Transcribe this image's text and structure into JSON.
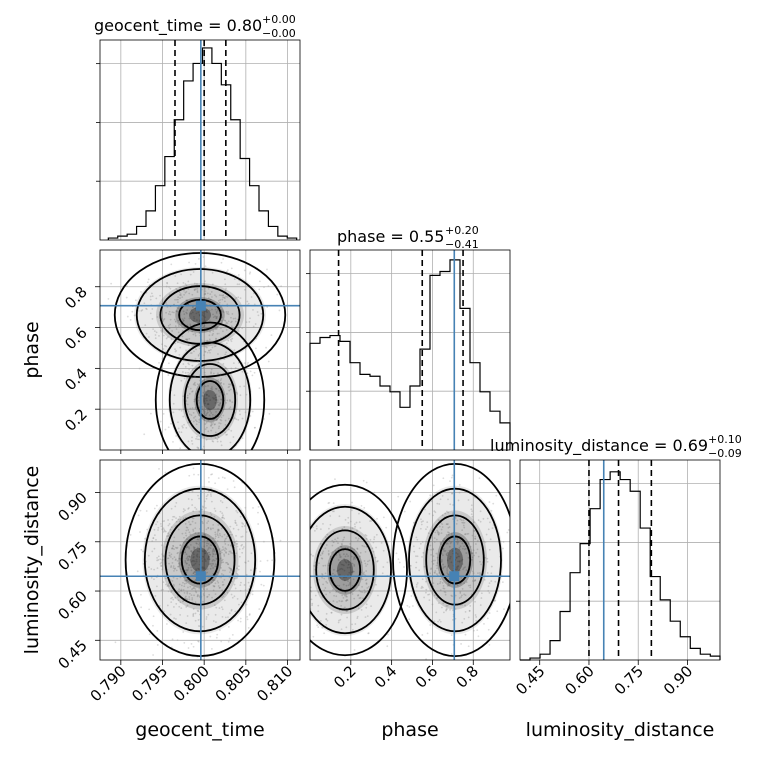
{
  "chart_data": {
    "type": "corner",
    "parameters": [
      "geocent_time",
      "phase",
      "luminosity_distance"
    ],
    "truth_color": "#4682b4",
    "truths": {
      "geocent_time": 0.7996,
      "phase": 0.707,
      "luminosity_distance": 0.645
    },
    "ranges": {
      "geocent_time": [
        0.7875,
        0.8115
      ],
      "phase": [
        0.0,
        0.98
      ],
      "luminosity_distance": [
        0.39,
        0.999
      ]
    },
    "titles": [
      {
        "param": "geocent_time",
        "text": "geocent_time = 0.80",
        "plus": "+0.00",
        "minus": "−0.00"
      },
      {
        "param": "phase",
        "text": "phase = 0.55",
        "plus": "+0.20",
        "minus": "−0.41"
      },
      {
        "param": "luminosity_distance",
        "text": "luminosity_distance = 0.69",
        "plus": "+0.10",
        "minus": "−0.09"
      }
    ],
    "axis_labels": {
      "x": [
        "geocent_time",
        "phase",
        "luminosity_distance"
      ],
      "y": [
        "phase",
        "luminosity_distance"
      ]
    },
    "ticks": {
      "geocent_time": [
        "0.790",
        "0.795",
        "0.800",
        "0.805",
        "0.810"
      ],
      "phase": [
        "0.2",
        "0.4",
        "0.6",
        "0.8"
      ],
      "luminosity_distance": [
        "0.45",
        "0.60",
        "0.75",
        "0.90"
      ]
    },
    "quantiles": {
      "geocent_time": [
        0.7965,
        0.8,
        0.8026
      ],
      "phase": [
        0.14,
        0.55,
        0.75
      ],
      "luminosity_distance": [
        0.6,
        0.69,
        0.79
      ]
    },
    "histograms": {
      "geocent_time": {
        "x_start": 0.7885,
        "bin_width": 0.00113,
        "counts": [
          0.01,
          0.02,
          0.03,
          0.07,
          0.15,
          0.28,
          0.43,
          0.62,
          0.82,
          0.91,
          0.99,
          0.91,
          0.8,
          0.62,
          0.42,
          0.28,
          0.15,
          0.07,
          0.02,
          0.01
        ]
      },
      "phase": {
        "x_start": 0.0,
        "bin_width": 0.049,
        "counts": [
          0.55,
          0.58,
          0.59,
          0.56,
          0.45,
          0.39,
          0.38,
          0.33,
          0.3,
          0.22,
          0.33,
          0.52,
          0.9,
          0.92,
          0.98,
          0.73,
          0.45,
          0.3,
          0.2,
          0.14
        ]
      },
      "luminosity_distance": {
        "x_start": 0.39,
        "bin_width": 0.0305,
        "counts": [
          0.0,
          0.01,
          0.03,
          0.1,
          0.25,
          0.45,
          0.6,
          0.78,
          0.93,
          0.97,
          0.93,
          0.87,
          0.68,
          0.43,
          0.31,
          0.2,
          0.12,
          0.06,
          0.03,
          0.02
        ]
      }
    }
  }
}
